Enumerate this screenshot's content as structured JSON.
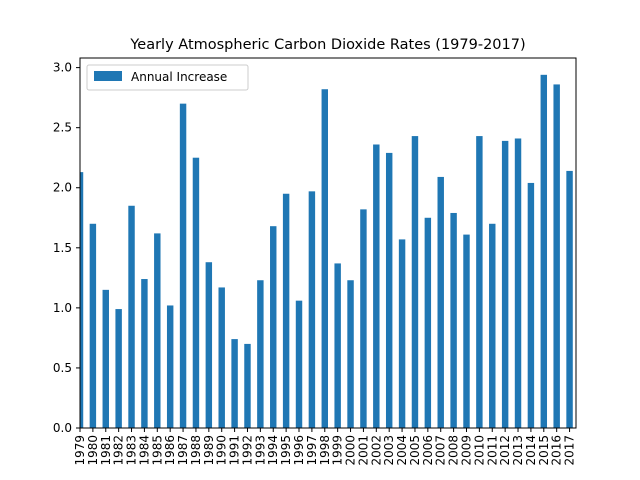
{
  "chart_data": {
    "type": "bar",
    "title": "Yearly Atmospheric Carbon Dioxide Rates (1979-2017)",
    "xlabel": "",
    "ylabel": "",
    "ylim": [
      0,
      3.0
    ],
    "yticks": [
      "0.0",
      "0.5",
      "1.0",
      "1.5",
      "2.0",
      "2.5",
      "3.0"
    ],
    "legend_position": "top-left",
    "grid": false,
    "bar_color": "#1f77b4",
    "categories": [
      "1979",
      "1980",
      "1981",
      "1982",
      "1983",
      "1984",
      "1985",
      "1986",
      "1987",
      "1988",
      "1989",
      "1990",
      "1991",
      "1992",
      "1993",
      "1994",
      "1995",
      "1996",
      "1997",
      "1998",
      "1999",
      "2000",
      "2001",
      "2002",
      "2003",
      "2004",
      "2005",
      "2006",
      "2007",
      "2008",
      "2009",
      "2010",
      "2011",
      "2012",
      "2013",
      "2014",
      "2015",
      "2016",
      "2017"
    ],
    "series": [
      {
        "name": "Annual Increase",
        "values": [
          2.13,
          1.7,
          1.15,
          0.99,
          1.85,
          1.24,
          1.62,
          1.02,
          2.7,
          2.25,
          1.38,
          1.17,
          0.74,
          0.7,
          1.23,
          1.68,
          1.95,
          1.06,
          1.97,
          2.82,
          1.37,
          1.23,
          1.82,
          2.36,
          2.29,
          1.57,
          2.43,
          1.75,
          2.09,
          1.79,
          1.61,
          2.43,
          1.7,
          2.39,
          2.41,
          2.04,
          2.94,
          2.86,
          2.14
        ]
      }
    ]
  }
}
